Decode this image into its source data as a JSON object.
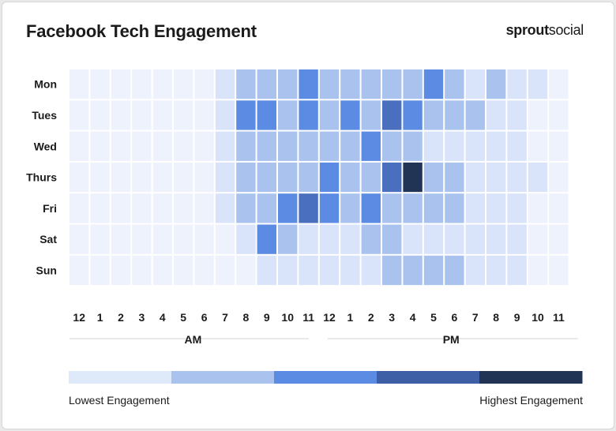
{
  "header": {
    "title": "Facebook Tech Engagement",
    "brand_bold": "sprout",
    "brand_light": "social"
  },
  "legend": {
    "low_label": "Lowest Engagement",
    "high_label": "Highest Engagement",
    "colors": [
      "#deeafa",
      "#a9c3ee",
      "#5b8be3",
      "#3e5ea6",
      "#223456"
    ]
  },
  "chart_data": {
    "type": "heatmap",
    "title": "Facebook Tech Engagement",
    "rows": [
      "Mon",
      "Tues",
      "Wed",
      "Thurs",
      "Fri",
      "Sat",
      "Sun"
    ],
    "columns": [
      "12",
      "1",
      "2",
      "3",
      "4",
      "5",
      "6",
      "7",
      "8",
      "9",
      "10",
      "11",
      "12",
      "1",
      "2",
      "3",
      "4",
      "5",
      "6",
      "7",
      "8",
      "9",
      "10",
      "11"
    ],
    "period_labels": [
      "AM",
      "PM"
    ],
    "scale": [
      "lowest",
      "low",
      "medium",
      "high",
      "highest"
    ],
    "palette": [
      "#eef2fc",
      "#d9e3f9",
      "#a9c3ee",
      "#5b8be3",
      "#4a6fbf",
      "#223456"
    ],
    "values": [
      [
        0,
        0,
        0,
        0,
        0,
        0,
        0,
        1,
        2,
        2,
        2,
        3,
        2,
        2,
        2,
        2,
        2,
        3,
        2,
        1,
        2,
        1,
        1,
        0
      ],
      [
        0,
        0,
        0,
        0,
        0,
        0,
        0,
        1,
        3,
        3,
        2,
        3,
        2,
        3,
        2,
        4,
        3,
        2,
        2,
        2,
        1,
        1,
        0,
        0
      ],
      [
        0,
        0,
        0,
        0,
        0,
        0,
        0,
        1,
        2,
        2,
        2,
        2,
        2,
        2,
        3,
        2,
        2,
        1,
        1,
        1,
        1,
        1,
        0,
        0
      ],
      [
        0,
        0,
        0,
        0,
        0,
        0,
        0,
        1,
        2,
        2,
        2,
        2,
        3,
        2,
        2,
        4,
        5,
        2,
        2,
        1,
        1,
        1,
        1,
        0
      ],
      [
        0,
        0,
        0,
        0,
        0,
        0,
        0,
        1,
        2,
        2,
        3,
        4,
        3,
        2,
        3,
        2,
        2,
        2,
        2,
        1,
        1,
        1,
        0,
        0
      ],
      [
        0,
        0,
        0,
        0,
        0,
        0,
        0,
        0,
        1,
        3,
        2,
        1,
        1,
        1,
        2,
        2,
        1,
        1,
        1,
        1,
        1,
        1,
        0,
        0
      ],
      [
        0,
        0,
        0,
        0,
        0,
        0,
        0,
        0,
        0,
        1,
        1,
        1,
        1,
        1,
        1,
        2,
        2,
        2,
        2,
        1,
        1,
        1,
        0,
        0
      ]
    ]
  }
}
